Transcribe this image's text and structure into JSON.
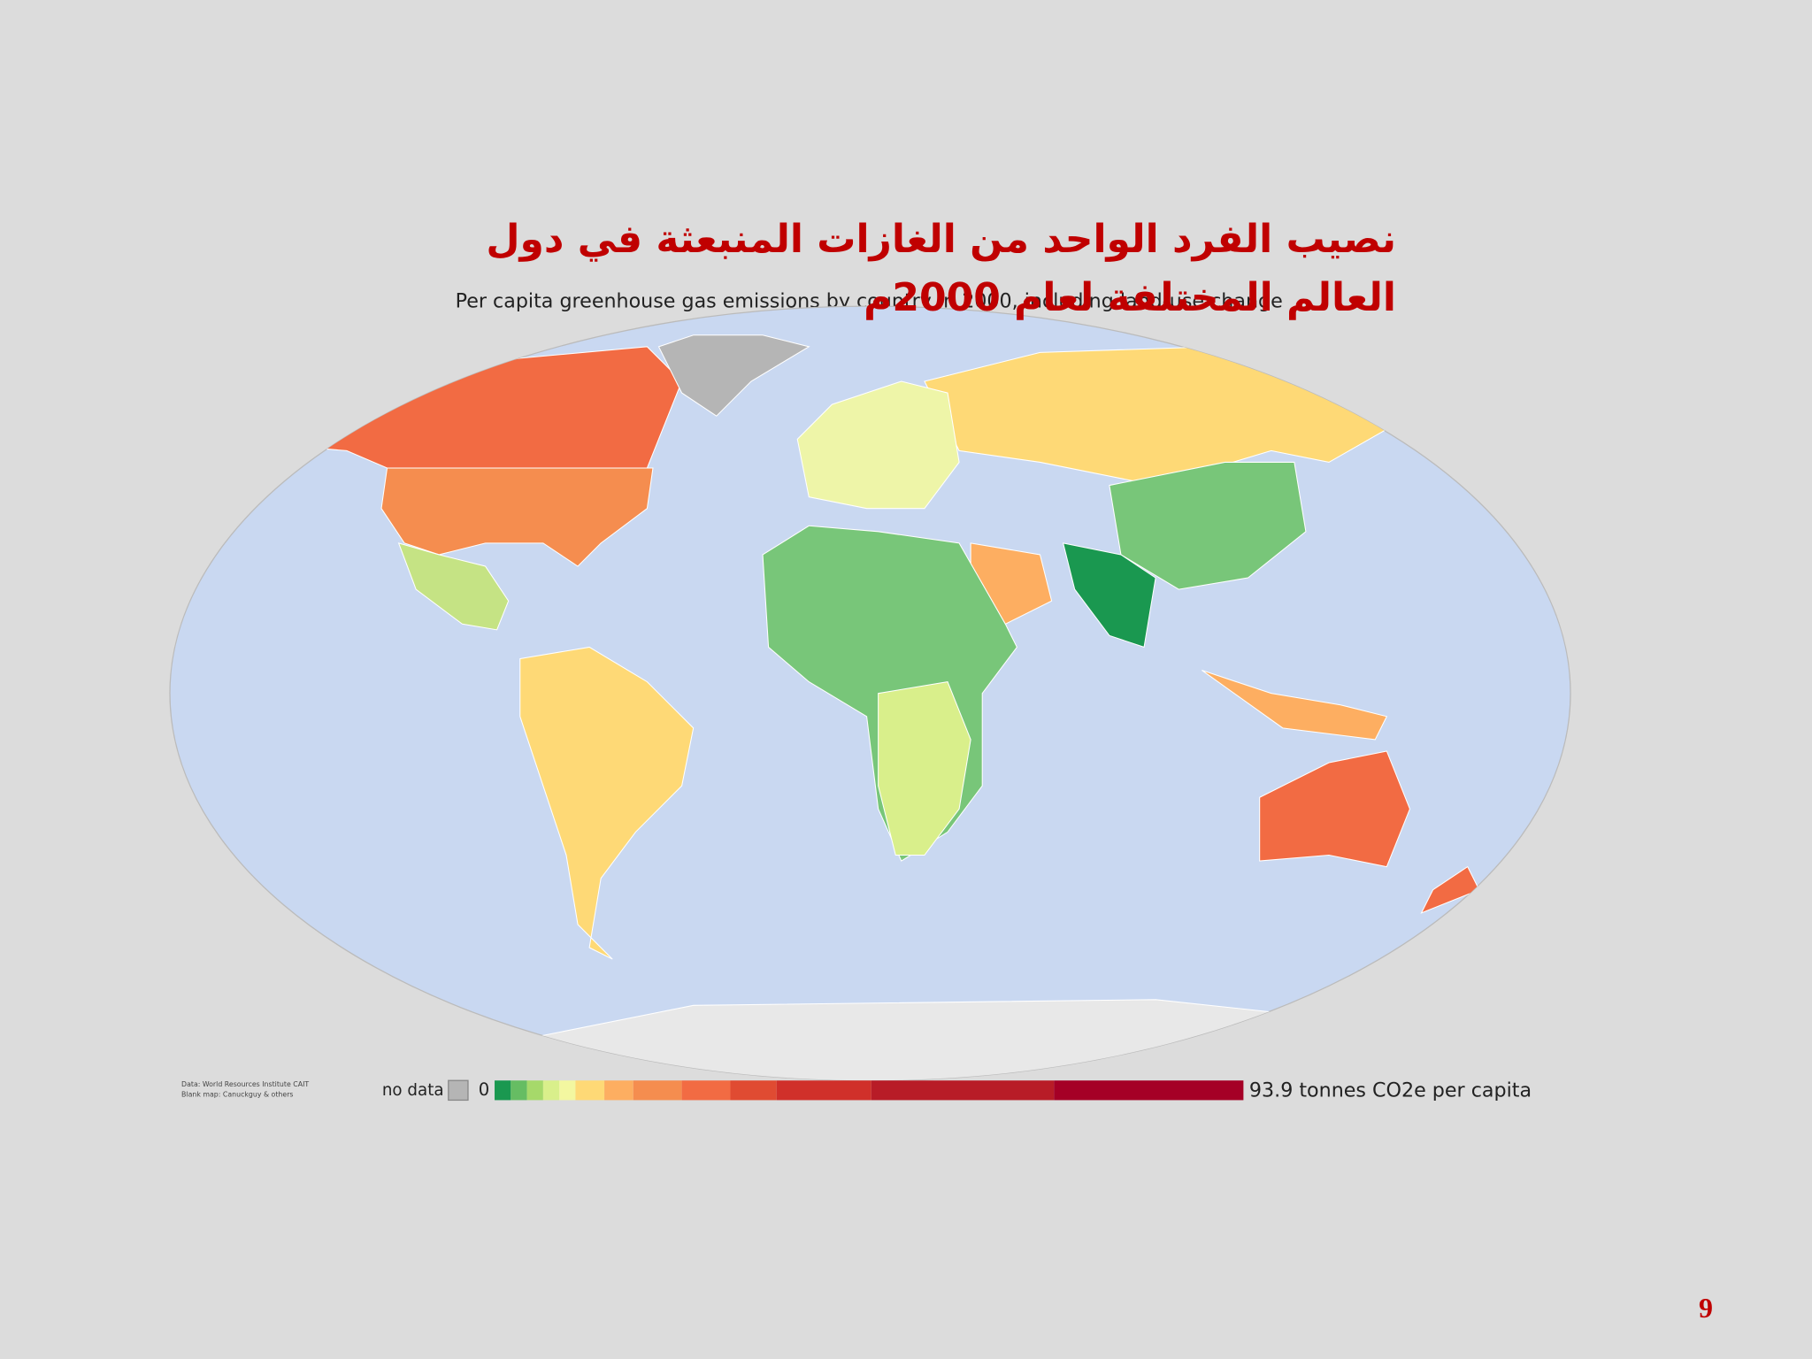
{
  "title": [
    "نصيب الفرد الواحد من الغازات المنبعثة في دول",
    "العالم المختلفة لعام 2000م"
  ],
  "map": {
    "subtitle": "Per capita greenhouse gas emissions by country in 2000, including land-use change",
    "legend": {
      "no_data": "no data",
      "min": "0",
      "max": "93.9 tonnes CO2e per capita"
    },
    "source": [
      "Data: World Resources Institute CAIT",
      "Blank map: Canuckguy & others"
    ]
  },
  "page_number": "9"
}
